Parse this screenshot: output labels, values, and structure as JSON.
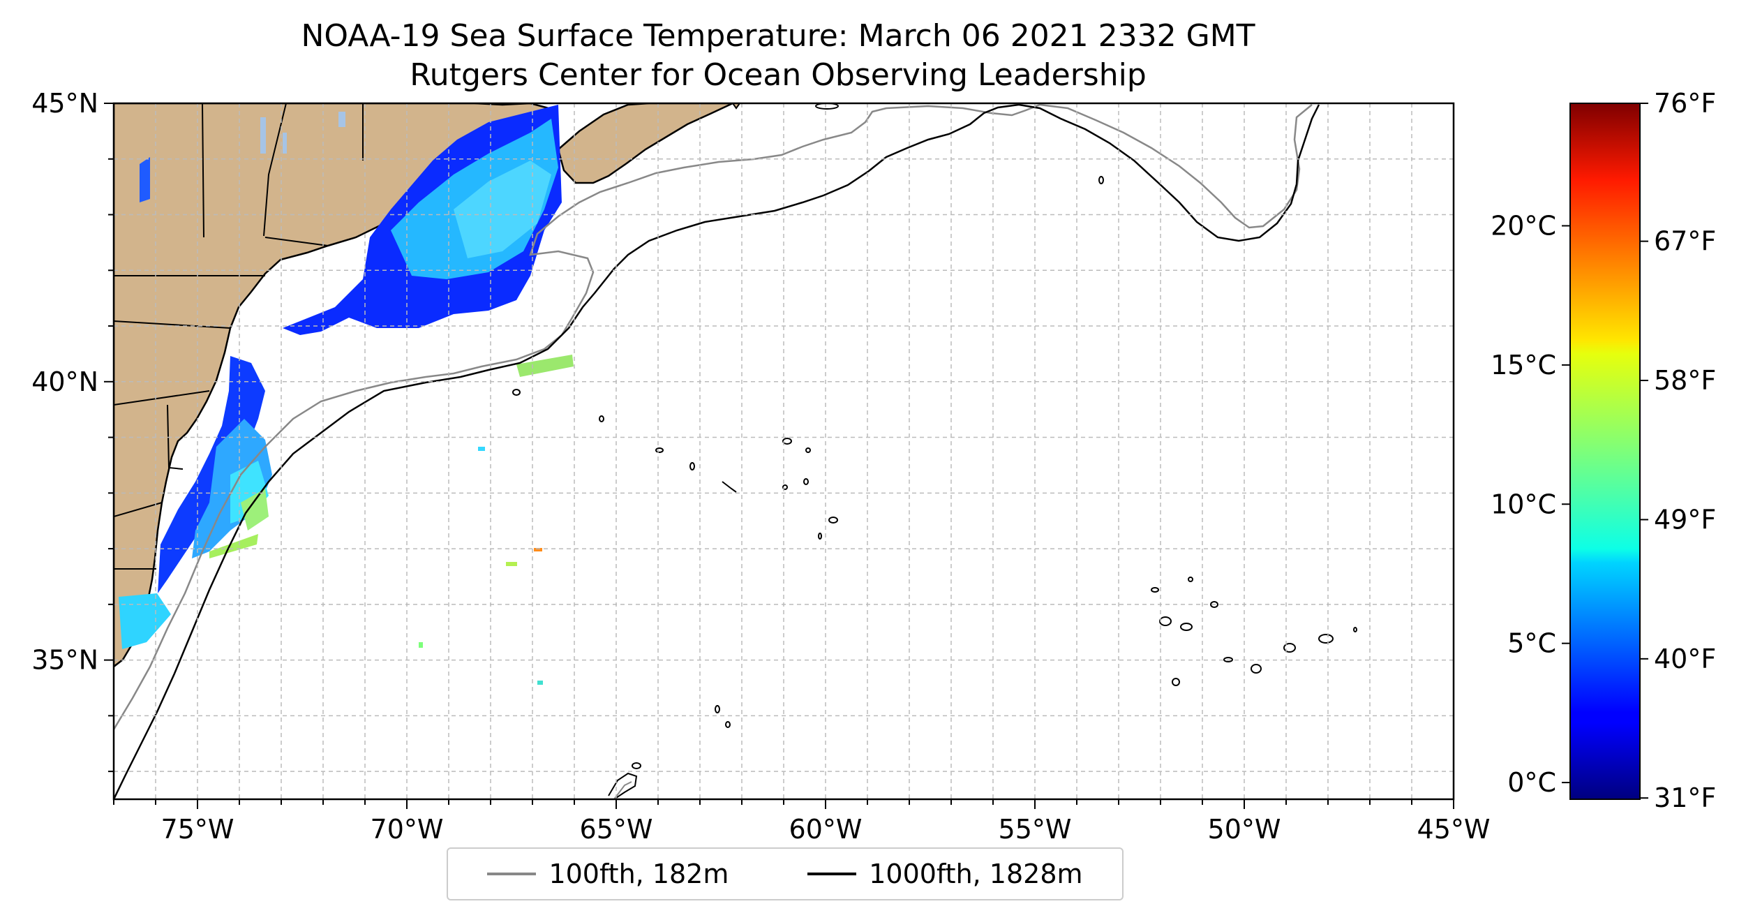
{
  "title": {
    "line1": "NOAA-19 Sea Surface Temperature: March 06 2021 2332 GMT",
    "line2": "Rutgers Center for Ocean Observing Leadership"
  },
  "map": {
    "lon_range": [
      -77,
      -45
    ],
    "lat_range": [
      32.5,
      45
    ],
    "lon_ticks": [
      {
        "value": -75,
        "label": "75°W"
      },
      {
        "value": -70,
        "label": "70°W"
      },
      {
        "value": -65,
        "label": "65°W"
      },
      {
        "value": -60,
        "label": "60°W"
      },
      {
        "value": -55,
        "label": "55°W"
      },
      {
        "value": -50,
        "label": "50°W"
      },
      {
        "value": -45,
        "label": "45°W"
      }
    ],
    "lat_ticks": [
      {
        "value": 45,
        "label": "45°N"
      },
      {
        "value": 40,
        "label": "40°N"
      },
      {
        "value": 35,
        "label": "35°N"
      }
    ],
    "grid": true,
    "colors": {
      "land": "#d2b48c",
      "lakes": "#a6c4e6",
      "isobath_100": "#888888",
      "isobath_1000": "#000000",
      "grid": "#bbbbbb"
    }
  },
  "legend": {
    "entries": [
      {
        "label": "100fth, 182m",
        "color": "#888888"
      },
      {
        "label": "1000fth, 1828m",
        "color": "#000000"
      }
    ]
  },
  "colorbar": {
    "colormap": "jet",
    "range_c": [
      -0.6,
      24.4
    ],
    "celsius_ticks": [
      {
        "value": 0,
        "label": "0°C"
      },
      {
        "value": 5,
        "label": "5°C"
      },
      {
        "value": 10,
        "label": "10°C"
      },
      {
        "value": 15,
        "label": "15°C"
      },
      {
        "value": 20,
        "label": "20°C"
      }
    ],
    "fahrenheit_ticks": [
      {
        "value": 31,
        "label": "31°F"
      },
      {
        "value": 40,
        "label": "40°F"
      },
      {
        "value": 49,
        "label": "49°F"
      },
      {
        "value": 58,
        "label": "58°F"
      },
      {
        "value": 67,
        "label": "67°F"
      },
      {
        "value": 76,
        "label": "76°F"
      }
    ]
  }
}
